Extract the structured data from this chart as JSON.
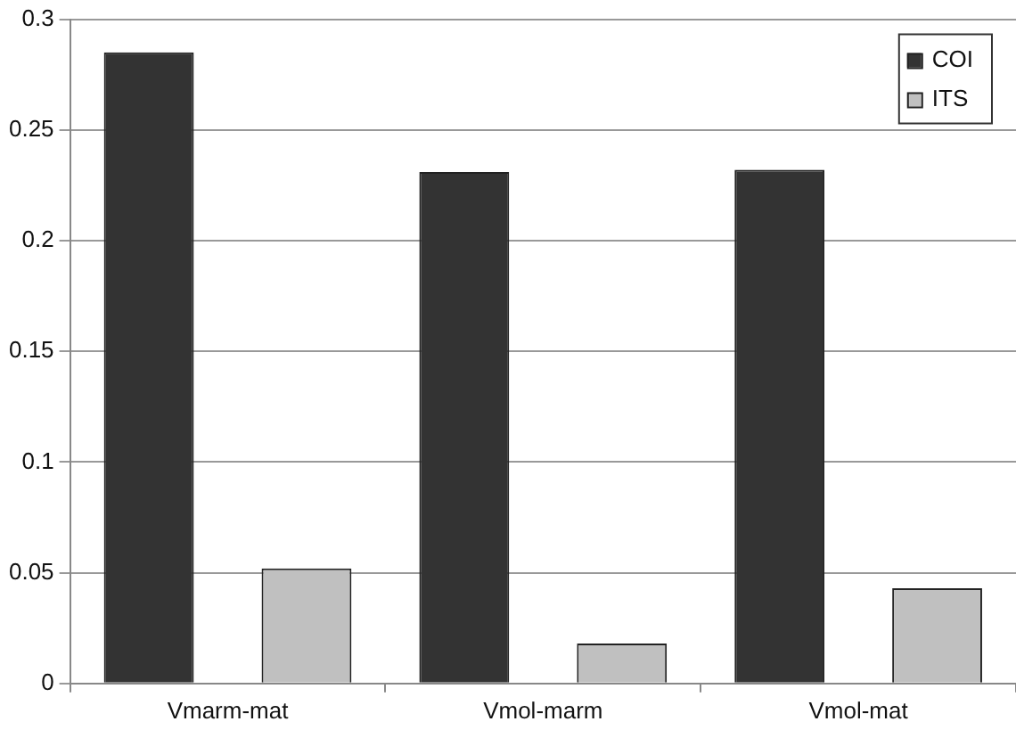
{
  "chart_data": {
    "type": "bar",
    "categories": [
      "Vmarm-mat",
      "Vmol-marm",
      "Vmol-mat"
    ],
    "series": [
      {
        "name": "COI",
        "color": "#333333",
        "values": [
          0.285,
          0.231,
          0.232
        ]
      },
      {
        "name": "ITS",
        "color": "#c0c0c0",
        "values": [
          0.052,
          0.018,
          0.043
        ]
      }
    ],
    "ylim": [
      0,
      0.3
    ],
    "yticks": [
      0,
      0.05,
      0.1,
      0.15,
      0.2,
      0.25,
      0.3
    ],
    "grid": "y",
    "legend": "top right"
  }
}
